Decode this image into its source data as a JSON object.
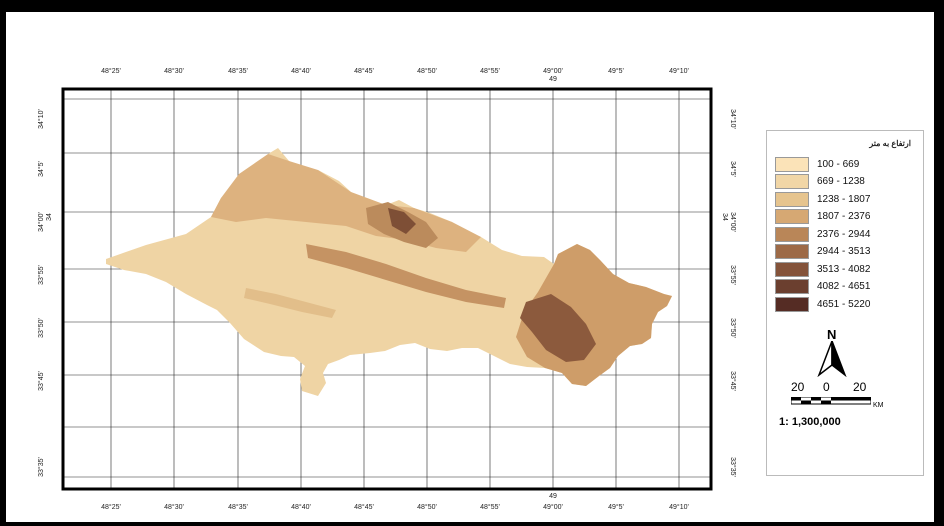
{
  "map": {
    "top_lon_labels": [
      "48°25'",
      "48°30'",
      "48°35'",
      "48°40'",
      "48°45'",
      "48°50'",
      "48°55'",
      "49°00'",
      "49°5'",
      "49°10'"
    ],
    "bottom_lon_labels": [
      "48°25'",
      "48°30'",
      "48°35'",
      "48°40'",
      "48°45'",
      "48°50'",
      "48°55'",
      "49°00'",
      "49°5'",
      "49°10'"
    ],
    "top_extra": "49",
    "bottom_extra": "49",
    "left_lat_labels": [
      "34°10'",
      "34°5'",
      "34°00'",
      "33°55'",
      "33°50'",
      "33°45'",
      "33°35'"
    ],
    "left_extra": "34",
    "right_lat_labels": [
      "34°10'",
      "34°5'",
      "34°00'",
      "33°55'",
      "33°50'",
      "33°45'",
      "33°35'"
    ],
    "right_extra": "34"
  },
  "legend": {
    "title": "ارتفاع به متر",
    "items": [
      {
        "label": "100 - 669",
        "color": "#FBE3B8"
      },
      {
        "label": "669 - 1238",
        "color": "#F1D6A6"
      },
      {
        "label": "1238 - 1807",
        "color": "#E6C48E"
      },
      {
        "label": "1807 - 2376",
        "color": "#D6A873"
      },
      {
        "label": "2376 - 2944",
        "color": "#B98658"
      },
      {
        "label": "2944 - 3513",
        "color": "#9D6A47"
      },
      {
        "label": "3513 - 4082",
        "color": "#84533A"
      },
      {
        "label": "4082 - 4651",
        "color": "#6B3F2F"
      },
      {
        "label": "4651 - 5220",
        "color": "#552C24"
      }
    ],
    "north": "N",
    "scale": {
      "left": "20",
      "mid": "0",
      "right": "20",
      "unit": "KM",
      "ratio": "1: 1,300,000"
    }
  }
}
